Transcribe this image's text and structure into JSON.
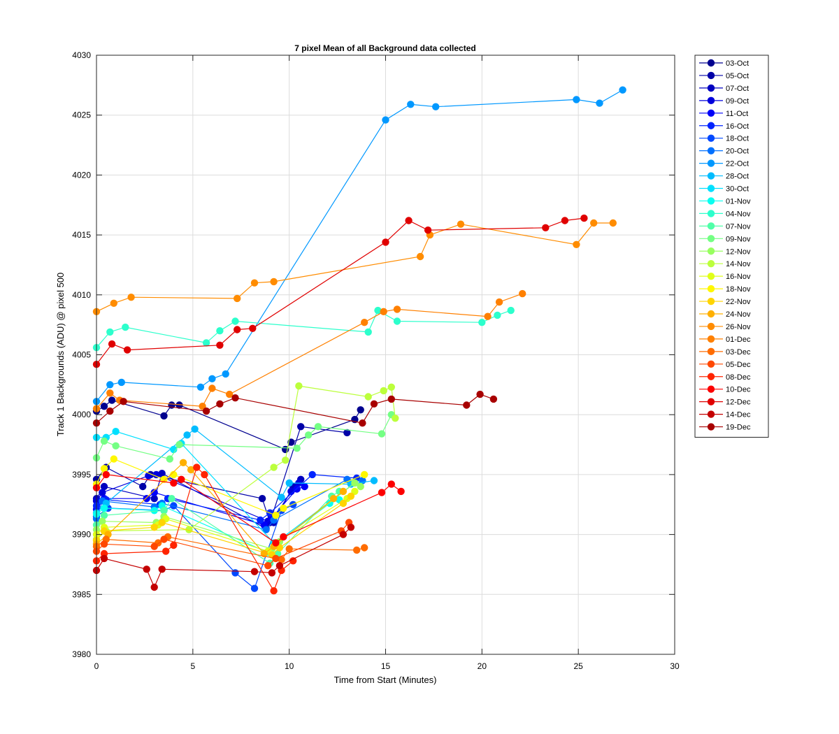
{
  "chart_data": {
    "type": "line",
    "title": "7 pixel Mean of all Background data collected",
    "xlabel": "Time from Start (Minutes)",
    "ylabel": "Track 1 Backgrounds (ADU) @ pixel 500",
    "xlim": [
      0,
      30
    ],
    "ylim": [
      3980,
      4030
    ],
    "xticks": [
      "0",
      "5",
      "10",
      "15",
      "20",
      "25",
      "30"
    ],
    "yticks": [
      "3980",
      "3985",
      "3990",
      "3995",
      "4000",
      "4005",
      "4010",
      "4015",
      "4020",
      "4025",
      "4030"
    ],
    "grid": true,
    "legend_position": "outside-right",
    "series": [
      {
        "name": "03-Oct",
        "color": "#00008F",
        "x": [
          0,
          0.4,
          0.8,
          3.5,
          3.9,
          4.3,
          9.8,
          10.1,
          13.4,
          13.7
        ],
        "y": [
          4000.3,
          4000.7,
          4001.2,
          3999.9,
          4000.8,
          4000.8,
          3997.1,
          3997.7,
          3999.6,
          4000.4
        ]
      },
      {
        "name": "05-Oct",
        "color": "#0000A8",
        "x": [
          0,
          0.5,
          2.4,
          2.8,
          8.6,
          9.0,
          10.6,
          13.0
        ],
        "y": [
          3994.6,
          3995.6,
          3994.0,
          3995.0,
          3993.0,
          3991.0,
          3999.0,
          3998.5
        ]
      },
      {
        "name": "07-Oct",
        "color": "#0000C0",
        "x": [
          0,
          0.4,
          3.0,
          3.4,
          8.8,
          9.2,
          10.2,
          10.6
        ],
        "y": [
          3993.0,
          3994.0,
          3993.0,
          3995.1,
          3990.5,
          3991.0,
          3994.0,
          3994.6
        ]
      },
      {
        "name": "09-Oct",
        "color": "#0000DC",
        "x": [
          0,
          0.3,
          2.7,
          3.1,
          8.9,
          9.3,
          10.1,
          10.5
        ],
        "y": [
          3992.8,
          3993.5,
          3994.9,
          3995.0,
          3991.1,
          3991.6,
          3993.6,
          3994.3
        ]
      },
      {
        "name": "11-Oct",
        "color": "#0000F8",
        "x": [
          0,
          0.4,
          2.6,
          3.0,
          8.7,
          9.1,
          10.4,
          10.8
        ],
        "y": [
          3992.1,
          3993.0,
          3993.0,
          3993.5,
          3990.8,
          3991.4,
          3993.8,
          3994.0
        ]
      },
      {
        "name": "16-Oct",
        "color": "#0024FF",
        "x": [
          0,
          0.5,
          3.3,
          3.7,
          8.5,
          9.0,
          11.2,
          13.5
        ],
        "y": [
          3992.4,
          3992.9,
          3992.5,
          3993.0,
          3991.2,
          3991.8,
          3995.0,
          3994.7
        ]
      },
      {
        "name": "18-Oct",
        "color": "#0048FF",
        "x": [
          0,
          0.6,
          3.5,
          4.0,
          7.2,
          8.2,
          9.6,
          10.2
        ],
        "y": [
          3991.5,
          3992.2,
          3992.0,
          3992.4,
          3986.8,
          3985.5,
          3992.0,
          3992.5
        ]
      },
      {
        "name": "20-Oct",
        "color": "#0070FF",
        "x": [
          0,
          0.3,
          3.0,
          3.4,
          8.8,
          9.2,
          13.0,
          13.8
        ],
        "y": [
          3991.3,
          3992.8,
          3992.3,
          3992.6,
          3990.4,
          3991.2,
          3994.6,
          3994.5
        ]
      },
      {
        "name": "22-Oct",
        "color": "#0098FF",
        "x": [
          0,
          0.7,
          1.3,
          5.4,
          6.0,
          6.7,
          15.0,
          16.3,
          17.6,
          24.9,
          26.1,
          27.3
        ],
        "y": [
          4001.1,
          4002.5,
          4002.7,
          4002.3,
          4003.0,
          4003.4,
          4024.6,
          4025.9,
          4025.7,
          4026.3,
          4026.0,
          4027.1
        ]
      },
      {
        "name": "28-Oct",
        "color": "#00BCFF",
        "x": [
          0,
          0.5,
          4.7,
          5.1,
          9.6,
          10.0,
          13.2,
          14.4
        ],
        "y": [
          3991.8,
          3992.6,
          3998.3,
          3998.8,
          3993.1,
          3994.3,
          3994.2,
          3994.5
        ]
      },
      {
        "name": "30-Oct",
        "color": "#00E0FF",
        "x": [
          0,
          0.5,
          1.0,
          4.0,
          4.4,
          9.2,
          9.7,
          13.4
        ],
        "y": [
          3998.1,
          3998.1,
          3998.6,
          3997.1,
          3997.6,
          3989.3,
          3989.8,
          3994.3
        ]
      },
      {
        "name": "01-Nov",
        "color": "#08FFF0",
        "x": [
          0,
          0.4,
          3.0,
          3.4,
          8.9,
          9.3,
          12.1,
          12.6
        ],
        "y": [
          3991.7,
          3992.2,
          3992.0,
          3992.4,
          3988.5,
          3989.2,
          3992.6,
          3992.9
        ]
      },
      {
        "name": "04-Nov",
        "color": "#2CFFCC",
        "x": [
          0,
          0.7,
          1.5,
          5.7,
          6.4,
          7.2,
          14.1,
          14.6,
          15.6,
          20.0,
          20.8,
          21.5
        ],
        "y": [
          4005.6,
          4006.9,
          4007.3,
          4006.0,
          4007.0,
          4007.8,
          4006.9,
          4008.7,
          4007.8,
          4007.7,
          4008.3,
          4008.7
        ]
      },
      {
        "name": "07-Nov",
        "color": "#50FFA8",
        "x": [
          0,
          0.4,
          3.5,
          3.9,
          9.0,
          9.4,
          12.2,
          12.6
        ],
        "y": [
          3990.8,
          3991.6,
          3992.0,
          3993.0,
          3987.6,
          3988.4,
          3993.2,
          3993.6
        ]
      },
      {
        "name": "09-Nov",
        "color": "#74FF84",
        "x": [
          0,
          0.4,
          1.0,
          3.8,
          4.3,
          10.4,
          11.0,
          11.5,
          14.8,
          15.3
        ],
        "y": [
          3996.4,
          3997.8,
          3997.4,
          3996.3,
          3997.5,
          3997.2,
          3998.3,
          3999.0,
          3998.4,
          4000.0
        ]
      },
      {
        "name": "12-Nov",
        "color": "#98FF60",
        "x": [
          0,
          0.3,
          3.1,
          3.5,
          9.1,
          9.5,
          13.4,
          13.7
        ],
        "y": [
          3990.4,
          3991.1,
          3991.0,
          3991.5,
          3988.8,
          3989.4,
          3994.3,
          3994.0
        ]
      },
      {
        "name": "14-Nov",
        "color": "#BCFF3C",
        "x": [
          0,
          0.5,
          4.8,
          9.2,
          9.8,
          10.5,
          14.1,
          14.9,
          15.3,
          15.5
        ],
        "y": [
          3989.6,
          3990.3,
          3990.4,
          3995.6,
          3996.2,
          4002.4,
          4001.5,
          4002.0,
          4002.3,
          3999.7
        ]
      },
      {
        "name": "16-Nov",
        "color": "#E0FF18",
        "x": [
          0,
          0.4,
          3.2,
          3.6,
          8.9,
          9.3,
          13.0,
          13.4
        ],
        "y": [
          3990.0,
          3990.6,
          3990.8,
          3991.3,
          3988.6,
          3989.3,
          3993.0,
          3993.6
        ]
      },
      {
        "name": "18-Nov",
        "color": "#FFF700",
        "x": [
          0,
          0.4,
          0.9,
          3.5,
          4.0,
          9.3,
          9.7,
          13.9
        ],
        "y": [
          3994.2,
          3995.5,
          3996.3,
          3994.6,
          3995.0,
          3991.6,
          3992.2,
          3995.0
        ]
      },
      {
        "name": "22-Nov",
        "color": "#FFD400",
        "x": [
          0,
          0.4,
          3.0,
          3.4,
          9.1,
          9.5,
          12.8,
          13.2
        ],
        "y": [
          3989.5,
          3990.3,
          3990.6,
          3991.0,
          3988.3,
          3988.9,
          3992.6,
          3993.2
        ]
      },
      {
        "name": "24-Nov",
        "color": "#FFB000",
        "x": [
          0,
          0.6,
          4.5,
          4.9,
          8.7,
          9.2,
          12.3,
          12.8
        ],
        "y": [
          3989.2,
          3990.0,
          3996.0,
          3995.4,
          3988.4,
          3989.0,
          3993.0,
          3993.6
        ]
      },
      {
        "name": "26-Nov",
        "color": "#FF8C00",
        "x": [
          0,
          0.9,
          1.8,
          7.3,
          8.2,
          9.2,
          16.8,
          17.3,
          18.9,
          24.9,
          25.8,
          26.8
        ],
        "y": [
          4008.6,
          4009.3,
          4009.8,
          4009.7,
          4011.0,
          4011.1,
          4013.2,
          4015.0,
          4015.9,
          4014.2,
          4016.0,
          4016.0
        ]
      },
      {
        "name": "01-Dec",
        "color": "#FF8000",
        "x": [
          0,
          0.7,
          1.2,
          5.5,
          6.0,
          6.9,
          13.9,
          14.9,
          15.6,
          20.3,
          20.9,
          22.1
        ],
        "y": [
          4000.5,
          4001.8,
          4001.2,
          4000.7,
          4002.2,
          4001.7,
          4007.7,
          4008.6,
          4008.8,
          4008.2,
          4009.4,
          4010.1
        ]
      },
      {
        "name": "03-Dec",
        "color": "#FF6C00",
        "x": [
          0,
          0.5,
          3.2,
          3.7,
          9.6,
          10.0,
          13.5,
          13.9
        ],
        "y": [
          3989.0,
          3989.6,
          3989.3,
          3989.8,
          3987.9,
          3988.8,
          3988.7,
          3988.9
        ]
      },
      {
        "name": "05-Dec",
        "color": "#FF4800",
        "x": [
          0,
          0.4,
          3.0,
          3.5,
          8.9,
          9.3,
          12.7,
          13.1
        ],
        "y": [
          3988.6,
          3989.2,
          3989.0,
          3989.6,
          3987.4,
          3988.0,
          3990.3,
          3991.0
        ]
      },
      {
        "name": "08-Dec",
        "color": "#FF2400",
        "x": [
          0,
          0.4,
          3.6,
          4.0,
          5.2,
          5.6,
          9.2,
          9.6,
          10.2
        ],
        "y": [
          3987.8,
          3988.4,
          3988.6,
          3989.1,
          3995.6,
          3995.0,
          3985.3,
          3987.0,
          3987.8
        ]
      },
      {
        "name": "10-Dec",
        "color": "#FC0000",
        "x": [
          0,
          0.5,
          4.0,
          4.4,
          9.3,
          9.7,
          14.8,
          15.3,
          15.8
        ],
        "y": [
          3993.9,
          3995.0,
          3994.3,
          3994.6,
          3989.3,
          3989.8,
          3993.5,
          3994.2,
          3993.6
        ]
      },
      {
        "name": "12-Dec",
        "color": "#E00000",
        "x": [
          0,
          0.8,
          1.6,
          6.4,
          7.3,
          8.1,
          15.0,
          16.2,
          17.2,
          23.3,
          24.3,
          25.3
        ],
        "y": [
          4004.2,
          4005.9,
          4005.4,
          4005.8,
          4007.1,
          4007.2,
          4014.4,
          4016.2,
          4015.4,
          4015.6,
          4016.2,
          4016.4
        ]
      },
      {
        "name": "14-Dec",
        "color": "#C40000",
        "x": [
          0,
          0.4,
          2.6,
          3.0,
          3.4,
          8.2,
          9.1,
          9.5,
          12.8,
          13.2
        ],
        "y": [
          3987.0,
          3988.0,
          3987.1,
          3985.6,
          3987.1,
          3986.9,
          3986.8,
          3987.4,
          3990.0,
          3990.6
        ]
      },
      {
        "name": "19-Dec",
        "color": "#A80000",
        "x": [
          0,
          0.7,
          1.4,
          5.7,
          6.4,
          7.2,
          13.8,
          14.4,
          15.3,
          19.2,
          19.9,
          20.6
        ],
        "y": [
          3999.3,
          4000.3,
          4001.1,
          4000.3,
          4000.9,
          4001.4,
          3999.3,
          4000.9,
          4001.3,
          4000.8,
          4001.7,
          4001.3
        ]
      }
    ]
  }
}
